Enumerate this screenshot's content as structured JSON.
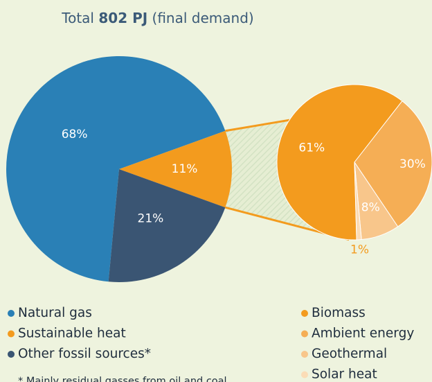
{
  "chart_data": {
    "type": "pie_of_pie",
    "title_parts": [
      "Total",
      "802 PJ",
      "(final demand)"
    ],
    "categories": [
      "Natural gas",
      "Sustainable heat",
      "Other fossil sources*"
    ],
    "values": [
      68,
      11,
      21
    ],
    "value_labels": [
      "68%",
      "11%",
      "21%"
    ],
    "colors": [
      "#2a80b6",
      "#f39b1e",
      "#3a5573"
    ],
    "exploded_index": 1,
    "secondary": {
      "categories": [
        "Biomass",
        "Ambient energy",
        "Geothermal",
        "Solar heat"
      ],
      "values": [
        61,
        30,
        8,
        1
      ],
      "value_labels": [
        "61%",
        "30%",
        "8%",
        "1%"
      ],
      "colors": [
        "#f39b1e",
        "#f5ae55",
        "#f8c68b",
        "#fbdcb6"
      ]
    },
    "footnote": "* Mainly residual gasses from oil and coal"
  }
}
